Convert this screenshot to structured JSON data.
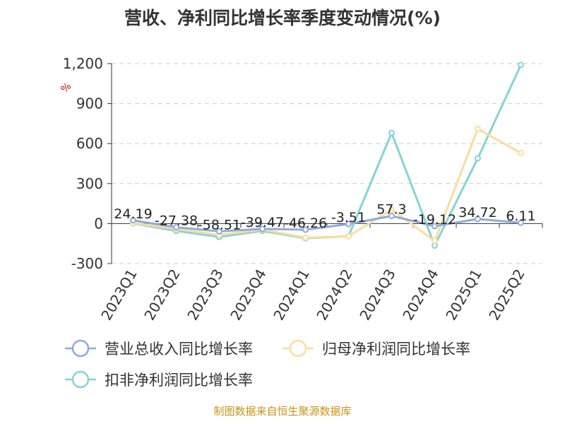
{
  "chart_data": {
    "type": "line",
    "title": "营收、净利同比增长率季度变动情况(%)",
    "ylabel": "%",
    "categories": [
      "2023Q1",
      "2023Q2",
      "2023Q3",
      "2023Q4",
      "2024Q1",
      "2024Q2",
      "2024Q3",
      "2024Q4",
      "2025Q1",
      "2025Q2"
    ],
    "ylim": [
      -300,
      1200
    ],
    "yticks": [
      -300,
      0,
      300,
      600,
      900,
      1200
    ],
    "ytick_labels": [
      "-300",
      "0",
      "300",
      "600",
      "900",
      "1,200"
    ],
    "grid": true,
    "legend_position": "bottom",
    "series": [
      {
        "name": "营业总收入同比增长率",
        "color": "#8faadc",
        "values": [
          24.19,
          -27.38,
          -58.51,
          -39.47,
          -46.26,
          -3.51,
          57.3,
          -19.12,
          34.72,
          6.11
        ],
        "data_labels": [
          "24.19",
          "-27.38",
          "-58.51",
          "-39.47",
          "-46.26",
          "-3.51",
          "57.3",
          "-19.12",
          "34.72",
          "6.11"
        ]
      },
      {
        "name": "归母净利润同比增长率",
        "color": "#fddd9c",
        "values": [
          5,
          -40,
          -85,
          -45,
          -105,
          -95,
          105,
          -130,
          710,
          530
        ]
      },
      {
        "name": "扣非净利润同比增长率",
        "color": "#86d3d6",
        "values": [
          2,
          -55,
          -100,
          -55,
          -110,
          -95,
          680,
          -165,
          490,
          1190
        ]
      }
    ]
  },
  "footer": {
    "source": "制图数据来自恒生聚源数据库"
  }
}
